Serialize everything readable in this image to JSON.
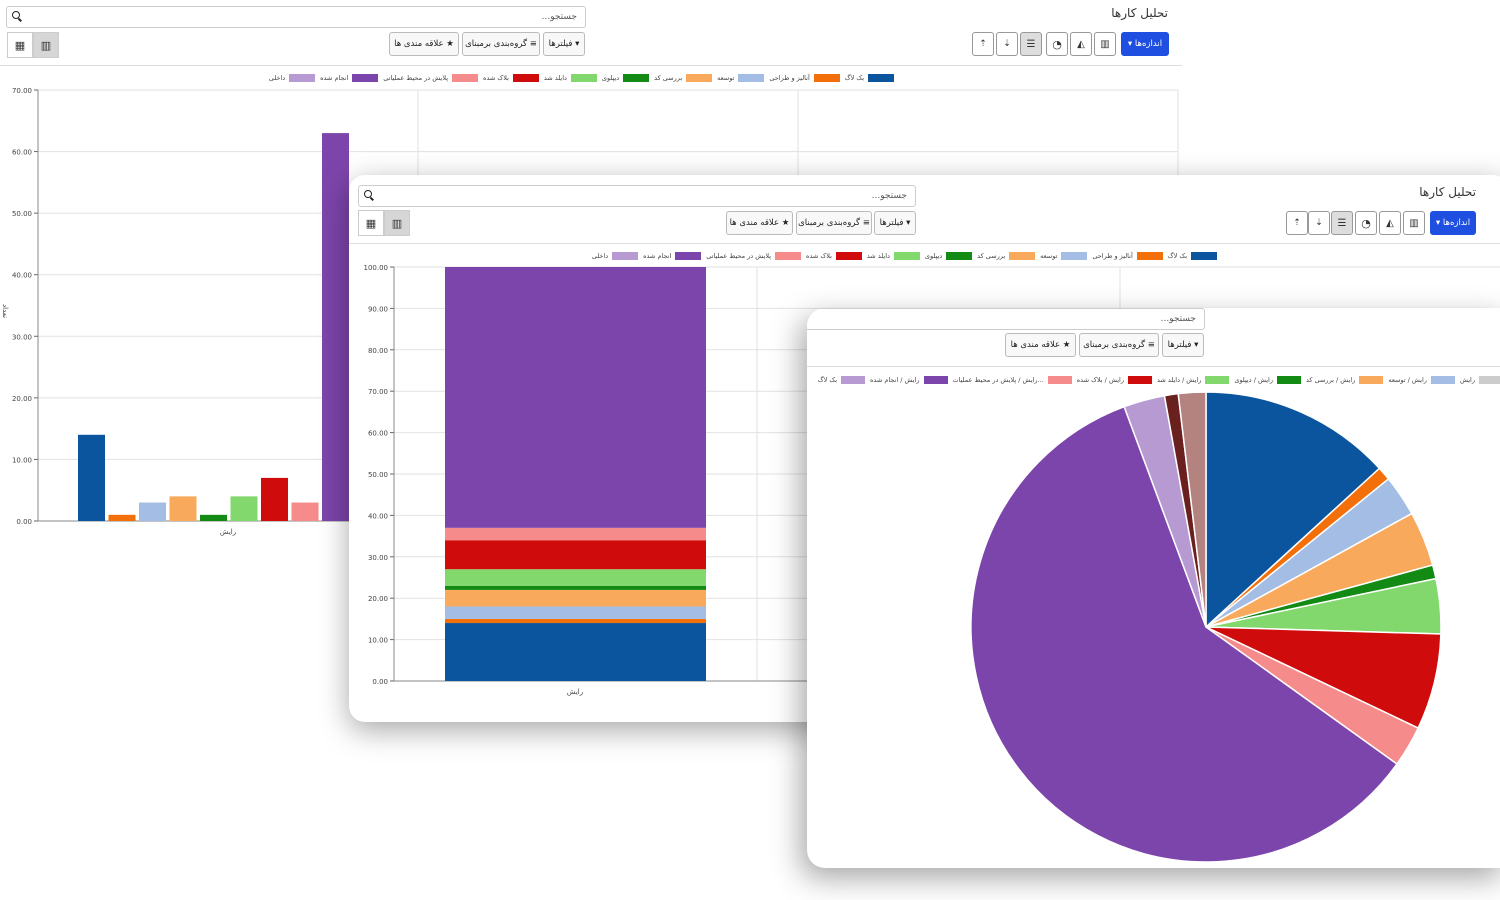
{
  "app": {
    "title": "تحلیل کارها",
    "search_placeholder": "جستجو...",
    "buttons": {
      "measures": "اندازه‌ها ▾",
      "filters": "▾ فیلترها",
      "group_by": "≡ گروه‌بندی برمبنای",
      "favorites": "★ علاقه مندی ها"
    },
    "front_buttons": {
      "filters": "▾ فیلترها",
      "group_by": "≡ گروه‌بندی برمبنای",
      "favorites": "★ علاقه مندی ها"
    },
    "icons": [
      "measures-caret-icon",
      "bar-chart-icon",
      "area-chart-icon",
      "pie-chart-icon",
      "stack-icon",
      "sort-desc-icon",
      "sort-asc-icon",
      "table-view-icon",
      "chart-view-icon",
      "search-icon"
    ]
  },
  "colors": {
    "accent": "#1f4fe0",
    "series": [
      "#0b559f",
      "#f36f0a",
      "#a3bde4",
      "#f8a95c",
      "#138a13",
      "#82d86c",
      "#cf0b0b",
      "#f68b8b",
      "#7c45ab",
      "#b79ad2"
    ]
  },
  "legend": [
    {
      "label": "بک لاگ",
      "color": "#0b559f"
    },
    {
      "label": "آنالیز و طراحی",
      "color": "#f36f0a"
    },
    {
      "label": "توسعه",
      "color": "#a3bde4"
    },
    {
      "label": "بررسی کد",
      "color": "#f8a95c"
    },
    {
      "label": "دیپلوی",
      "color": "#138a13"
    },
    {
      "label": "دایلد شد",
      "color": "#82d86c"
    },
    {
      "label": "بلاک شده",
      "color": "#cf0b0b"
    },
    {
      "label": "پلایش در محیط عملیاتی",
      "color": "#f68b8b"
    },
    {
      "label": "انجام شده",
      "color": "#7c45ab"
    },
    {
      "label": "داخلی",
      "color": "#b79ad2"
    }
  ],
  "pie_legend": [
    {
      "label": "رایش",
      "color": "#cccccc"
    },
    {
      "label": "رایش / توسعه",
      "color": "#a3bde4"
    },
    {
      "label": "رایش / بررسی کد",
      "color": "#f8a95c"
    },
    {
      "label": "رایش / دیپلوی",
      "color": "#138a13"
    },
    {
      "label": "رایش / دایلد شد",
      "color": "#82d86c"
    },
    {
      "label": "رایش / بلاک شده",
      "color": "#cf0b0b"
    },
    {
      "label": "رایش / پلایش در محیط عملیات...",
      "color": "#f68b8b"
    },
    {
      "label": "رایش / انجام شده",
      "color": "#7c45ab"
    },
    {
      "label": "بک لاگ",
      "color": "#b79ad2"
    }
  ],
  "chart_data": [
    {
      "type": "bar",
      "categories": [
        "رایش"
      ],
      "series": [
        {
          "name": "بک لاگ",
          "values": [
            14
          ]
        },
        {
          "name": "آنالیز و طراحی",
          "values": [
            1
          ]
        },
        {
          "name": "توسعه",
          "values": [
            3
          ]
        },
        {
          "name": "بررسی کد",
          "values": [
            4
          ]
        },
        {
          "name": "دیپلوی",
          "values": [
            1
          ]
        },
        {
          "name": "دایلد شد",
          "values": [
            4
          ]
        },
        {
          "name": "بلاک شده",
          "values": [
            7
          ]
        },
        {
          "name": "پلایش در محیط عملیاتی",
          "values": [
            3
          ]
        },
        {
          "name": "انجام شده",
          "values": [
            63
          ]
        }
      ],
      "ylim": [
        0,
        70
      ],
      "yticks": [
        "0.00",
        "10.00",
        "20.00",
        "30.00",
        "40.00",
        "50.00",
        "60.00",
        "70.00"
      ],
      "xlabel": "رایش",
      "ylabel": "تعداد",
      "grid": true,
      "legend": "top"
    },
    {
      "type": "bar",
      "stacked": true,
      "categories": [
        "رایش"
      ],
      "series": [
        {
          "name": "بک لاگ",
          "values": [
            14
          ]
        },
        {
          "name": "آنالیز و طراحی",
          "values": [
            1
          ]
        },
        {
          "name": "توسعه",
          "values": [
            3
          ]
        },
        {
          "name": "بررسی کد",
          "values": [
            4
          ]
        },
        {
          "name": "دیپلوی",
          "values": [
            1
          ]
        },
        {
          "name": "دایلد شد",
          "values": [
            4
          ]
        },
        {
          "name": "بلاک شده",
          "values": [
            7
          ]
        },
        {
          "name": "پلایش در محیط عملیاتی",
          "values": [
            3
          ]
        },
        {
          "name": "انجام شده",
          "values": [
            63
          ]
        }
      ],
      "ylim": [
        0,
        100
      ],
      "yticks": [
        "0.00",
        "10.00",
        "20.00",
        "30.00",
        "40.00",
        "50.00",
        "60.00",
        "70.00",
        "80.00",
        "90.00",
        "100.00"
      ],
      "xlabel": "رایش",
      "grid": true,
      "legend": "top"
    },
    {
      "type": "pie",
      "slices": [
        {
          "value": 14,
          "color": "#0b559f"
        },
        {
          "value": 1,
          "color": "#f36f0a"
        },
        {
          "value": 3,
          "color": "#a3bde4"
        },
        {
          "value": 4,
          "color": "#f8a95c"
        },
        {
          "value": 1,
          "color": "#138a13"
        },
        {
          "value": 4,
          "color": "#82d86c"
        },
        {
          "value": 7,
          "color": "#cf0b0b"
        },
        {
          "value": 3,
          "color": "#f68b8b"
        },
        {
          "value": 63,
          "color": "#7c45ab"
        },
        {
          "value": 3,
          "color": "#b79ad2"
        },
        {
          "value": 1,
          "color": "#6b2020"
        },
        {
          "value": 2,
          "color": "#b5837f"
        }
      ],
      "legend": "top"
    }
  ]
}
